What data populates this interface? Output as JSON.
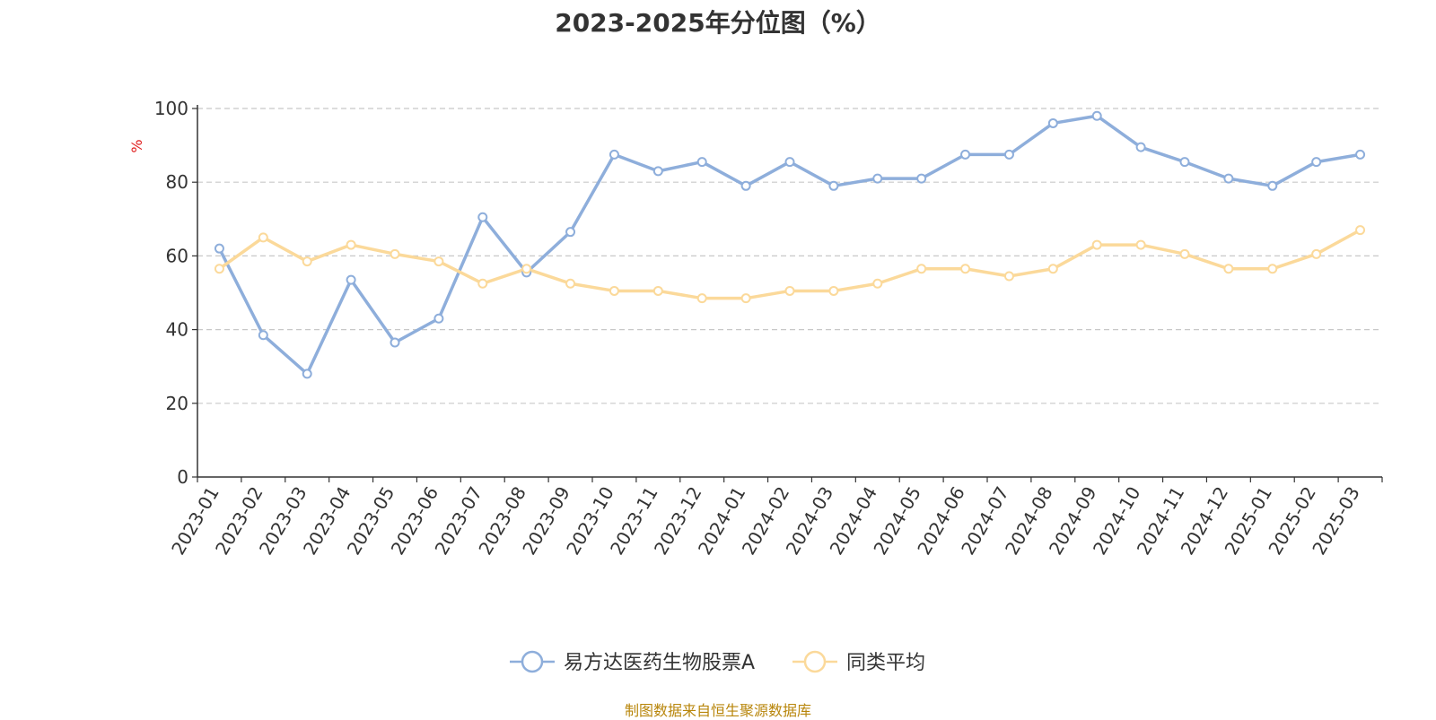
{
  "chart_data": {
    "type": "line",
    "title": "2023-2025年分位图（%）",
    "ylabel": "%",
    "xlabel": "",
    "ylim": [
      0,
      100
    ],
    "yticks": [
      0,
      20,
      40,
      60,
      80,
      100
    ],
    "grid": true,
    "legend_position": "bottom-center",
    "categories": [
      "2023-01",
      "2023-02",
      "2023-03",
      "2023-04",
      "2023-05",
      "2023-06",
      "2023-07",
      "2023-08",
      "2023-09",
      "2023-10",
      "2023-11",
      "2023-12",
      "2024-01",
      "2024-02",
      "2024-03",
      "2024-04",
      "2024-05",
      "2024-06",
      "2024-07",
      "2024-08",
      "2024-09",
      "2024-10",
      "2024-11",
      "2024-12",
      "2025-01",
      "2025-02",
      "2025-03"
    ],
    "series": [
      {
        "name": "易方达医药生物股票A",
        "color": "#8eaedb",
        "values": [
          62,
          38.5,
          28,
          53.5,
          36.5,
          43,
          70.5,
          55.5,
          66.5,
          87.5,
          83,
          85.5,
          79,
          85.5,
          79,
          81,
          81,
          87.5,
          87.5,
          96,
          98,
          89.5,
          85.5,
          81,
          79,
          85.5,
          87.5
        ]
      },
      {
        "name": "同类平均",
        "color": "#fbd99a",
        "values": [
          56.5,
          65,
          58.5,
          63,
          60.5,
          58.5,
          52.5,
          56.5,
          52.5,
          50.5,
          50.5,
          48.5,
          48.5,
          50.5,
          50.5,
          52.5,
          56.5,
          56.5,
          54.5,
          56.5,
          63,
          63,
          60.5,
          56.5,
          56.5,
          60.5,
          67
        ]
      }
    ]
  },
  "source_note": "制图数据来自恒生聚源数据库"
}
